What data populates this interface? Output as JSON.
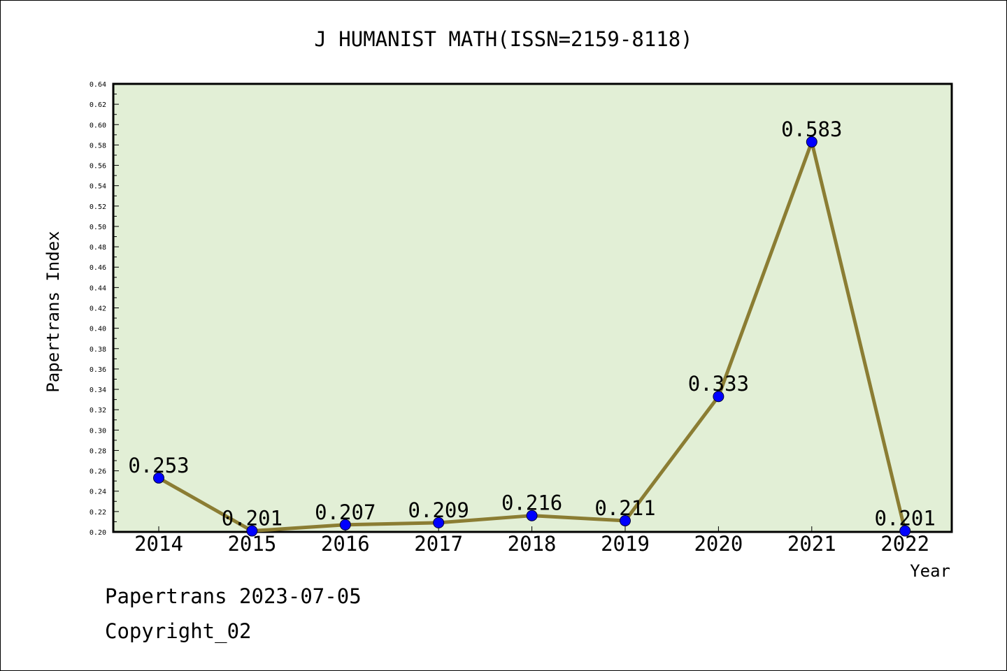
{
  "chart_data": {
    "type": "line",
    "title": "J HUMANIST MATH(ISSN=2159-8118)",
    "xlabel": "Year",
    "ylabel": "Papertrans Index",
    "categories": [
      "2014",
      "2015",
      "2016",
      "2017",
      "2018",
      "2019",
      "2020",
      "2021",
      "2022"
    ],
    "values": [
      0.253,
      0.201,
      0.207,
      0.209,
      0.216,
      0.211,
      0.333,
      0.583,
      0.201
    ],
    "data_labels": [
      "0.253",
      "0.201",
      "0.207",
      "0.209",
      "0.216",
      "0.211",
      "0.333",
      "0.583",
      "0.201"
    ],
    "ylim": [
      0.2,
      0.64
    ],
    "yticks": [
      "0.20",
      "0.22",
      "0.24",
      "0.26",
      "0.28",
      "0.30",
      "0.32",
      "0.34",
      "0.36",
      "0.38",
      "0.40",
      "0.42",
      "0.44",
      "0.46",
      "0.48",
      "0.50",
      "0.52",
      "0.54",
      "0.56",
      "0.58",
      "0.60",
      "0.62",
      "0.64"
    ],
    "grid": false,
    "colors": {
      "plot_background": "#e2efd6",
      "line": "#8b7d33",
      "marker": "#0000ff",
      "axis": "#000000"
    }
  },
  "footer": {
    "line1": "Papertrans 2023-07-05",
    "line2": "Copyright_02"
  }
}
